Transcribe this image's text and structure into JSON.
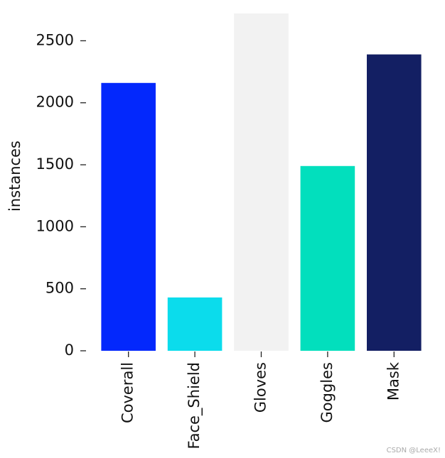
{
  "chart_data": {
    "type": "bar",
    "y_label": "instances",
    "categories": [
      "Coverall",
      "Face_Shield",
      "Gloves",
      "Goggles",
      "Mask"
    ],
    "values": [
      2160,
      430,
      2720,
      1490,
      2390
    ],
    "colors": [
      "#0328fc",
      "#0bdcec",
      "#f2f2f2",
      "#02dfbd",
      "#131f63"
    ],
    "ylim": [
      0,
      2720
    ],
    "yticks": [
      0,
      500,
      1000,
      1500,
      2000,
      2500
    ],
    "grid": false,
    "watermark": "CSDN @LeeeX!"
  }
}
